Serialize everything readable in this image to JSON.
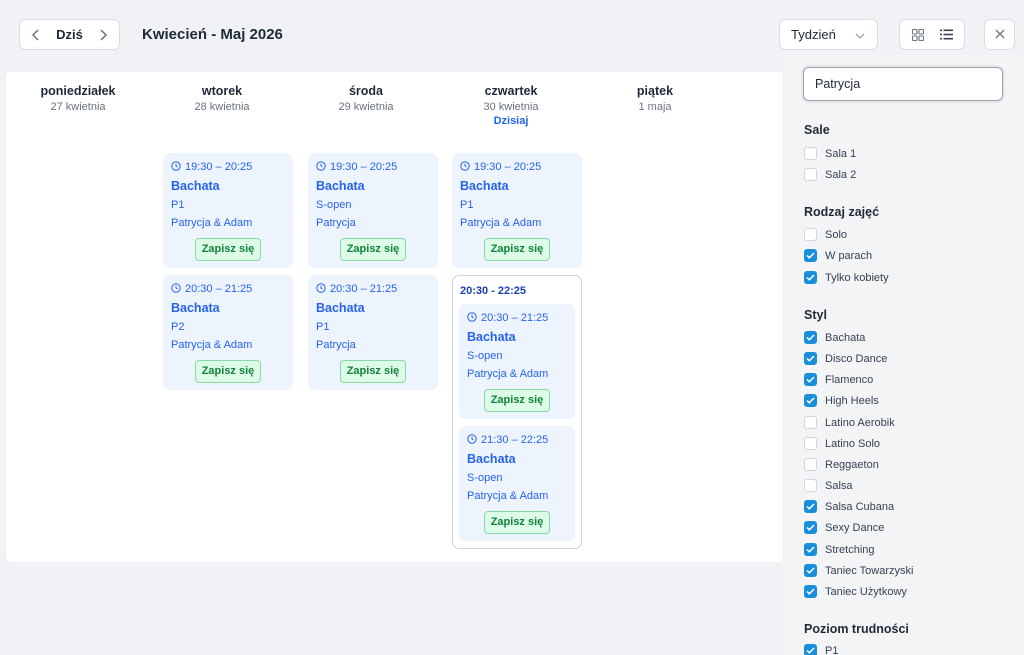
{
  "header": {
    "today_label": "Dziś",
    "range_title": "Kwiecień - Maj 2026",
    "view_select": "Tydzień"
  },
  "days": [
    {
      "name": "poniedziałek",
      "date": "27 kwietnia"
    },
    {
      "name": "wtorek",
      "date": "28 kwietnia"
    },
    {
      "name": "środa",
      "date": "29 kwietnia"
    },
    {
      "name": "czwartek",
      "date": "30 kwietnia",
      "today": "Dzisiaj"
    },
    {
      "name": "piątek",
      "date": "1 maja"
    }
  ],
  "events": {
    "tue_1": {
      "time": "19:30 – 20:25",
      "title": "Bachata",
      "level": "P1",
      "instructors": "Patrycja & Adam",
      "action": "Zapisz się"
    },
    "tue_2": {
      "time": "20:30 – 21:25",
      "title": "Bachata",
      "level": "P2",
      "instructors": "Patrycja & Adam",
      "action": "Zapisz się"
    },
    "wed_1": {
      "time": "19:30 – 20:25",
      "title": "Bachata",
      "level": "S-open",
      "instructors": "Patrycja",
      "action": "Zapisz się"
    },
    "wed_2": {
      "time": "20:30 – 21:25",
      "title": "Bachata",
      "level": "P1",
      "instructors": "Patrycja",
      "action": "Zapisz się"
    },
    "thu_1": {
      "time": "19:30 – 20:25",
      "title": "Bachata",
      "level": "P1",
      "instructors": "Patrycja & Adam",
      "action": "Zapisz się"
    },
    "thu_group_title": "20:30 - 22:25",
    "thu_2": {
      "time": "20:30 – 21:25",
      "title": "Bachata",
      "level": "S-open",
      "instructors": "Patrycja & Adam",
      "action": "Zapisz się"
    },
    "thu_3": {
      "time": "21:30 – 22:25",
      "title": "Bachata",
      "level": "S-open",
      "instructors": "Patrycja & Adam",
      "action": "Zapisz się"
    }
  },
  "filters": {
    "search_value": "Patrycja",
    "sections": {
      "rooms": {
        "title": "Sale",
        "items": [
          {
            "label": "Sala 1",
            "checked": false
          },
          {
            "label": "Sala 2",
            "checked": false
          }
        ]
      },
      "type": {
        "title": "Rodzaj zajęć",
        "items": [
          {
            "label": "Solo",
            "checked": false
          },
          {
            "label": "W parach",
            "checked": true
          },
          {
            "label": "Tylko kobiety",
            "checked": true
          }
        ]
      },
      "style": {
        "title": "Styl",
        "items": [
          {
            "label": "Bachata",
            "checked": true
          },
          {
            "label": "Disco Dance",
            "checked": true
          },
          {
            "label": "Flamenco",
            "checked": true
          },
          {
            "label": "High Heels",
            "checked": true
          },
          {
            "label": "Latino Aerobik",
            "checked": false
          },
          {
            "label": "Latino Solo",
            "checked": false
          },
          {
            "label": "Reggaeton",
            "checked": false
          },
          {
            "label": "Salsa",
            "checked": false
          },
          {
            "label": "Salsa Cubana",
            "checked": true
          },
          {
            "label": "Sexy Dance",
            "checked": true
          },
          {
            "label": "Stretching",
            "checked": true
          },
          {
            "label": "Taniec Towarzyski",
            "checked": true
          },
          {
            "label": "Taniec Użytkowy",
            "checked": true
          }
        ]
      },
      "level": {
        "title": "Poziom trudności",
        "items": [
          {
            "label": "P1",
            "checked": true
          }
        ]
      }
    }
  },
  "colors": {
    "accent": "#2563eb",
    "checkbox": "#1a8fd9",
    "signup_bg": "#dcfce7",
    "signup_text": "#15803d"
  }
}
